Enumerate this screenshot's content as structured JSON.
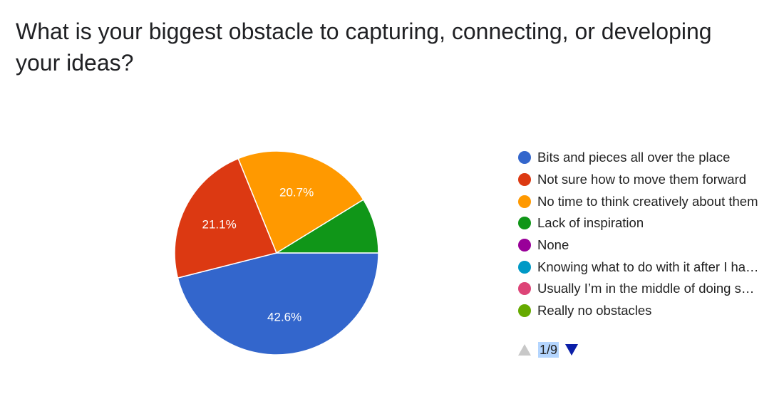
{
  "chart_data": {
    "type": "pie",
    "title": "What is your biggest obstacle to capturing, connecting, or developing your ideas?",
    "slices": [
      {
        "label": "Bits and pieces all over the place",
        "value": 42.6,
        "value_label": "42.6%",
        "color": "#3366cc"
      },
      {
        "label": "Not sure how to move them forward",
        "value": 21.1,
        "value_label": "21.1%",
        "color": "#dc3912"
      },
      {
        "label": "No time to think creatively about them",
        "value": 20.7,
        "value_label": "20.7%",
        "color": "#ff9900"
      },
      {
        "label": "Lack of inspiration",
        "value": 8.1,
        "value_label": "",
        "color": "#109618"
      },
      {
        "label": "None",
        "value": 0,
        "value_label": "",
        "color": "#990099"
      },
      {
        "label": "Knowing what to do with it after I ha…",
        "value": 0,
        "value_label": "",
        "color": "#0099c6"
      },
      {
        "label": "Usually I’m in the middle of doing s…",
        "value": 0,
        "value_label": "",
        "color": "#dd4477"
      },
      {
        "label": "Really no obstacles",
        "value": 0,
        "value_label": "",
        "color": "#66aa00"
      }
    ],
    "legend_position": "right"
  },
  "pager": {
    "text": "1/9",
    "up_icon": "triangle-up-icon",
    "down_icon": "triangle-down-icon"
  }
}
